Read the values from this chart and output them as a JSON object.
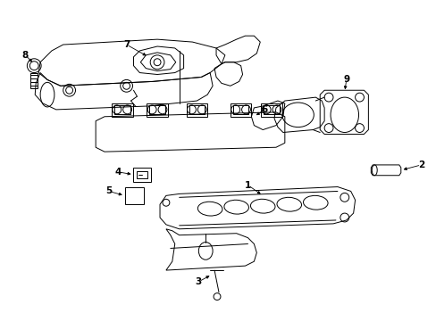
{
  "bg_color": "#ffffff",
  "line_color": "#000000",
  "fig_width": 4.89,
  "fig_height": 3.6,
  "dpi": 100,
  "lw": 0.7
}
